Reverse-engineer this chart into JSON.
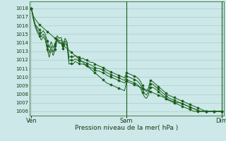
{
  "xlabel": "Pression niveau de la mer( hPa )",
  "xtick_labels": [
    "Ven",
    "Sam",
    "Dim"
  ],
  "xtick_positions": [
    0,
    48,
    96
  ],
  "ylim": [
    1005.5,
    1018.8
  ],
  "yticks": [
    1006,
    1007,
    1008,
    1009,
    1010,
    1011,
    1012,
    1013,
    1014,
    1015,
    1016,
    1017,
    1018
  ],
  "xlim": [
    -1,
    97
  ],
  "bg_color": "#cce8e8",
  "grid_color": "#aacccc",
  "line_color": "#1a5e1a",
  "vline_color": "#1a5e1a",
  "series": [
    [
      1018.0,
      1017.1,
      1016.7,
      1016.4,
      1016.1,
      1015.9,
      1015.7,
      1015.5,
      1015.3,
      1015.1,
      1014.9,
      1014.7,
      1014.5,
      1014.3,
      1014.1,
      1013.9,
      1013.7,
      1013.5,
      1013.3,
      1013.1,
      1012.9,
      1012.7,
      1012.5,
      1012.3,
      1012.1,
      1011.9,
      1011.7,
      1011.5,
      1011.3,
      1011.1,
      1010.9,
      1010.7,
      1010.5,
      1010.3,
      1010.1,
      1009.9,
      1009.7,
      1009.5,
      1009.3,
      1009.2,
      1009.1,
      1009.0,
      1008.9,
      1008.8,
      1008.7,
      1008.6,
      1008.5,
      1008.4,
      1009.5,
      1009.4,
      1009.3,
      1009.2,
      1009.1,
      1009.0,
      1008.9,
      1008.8,
      1008.7,
      1008.6,
      1008.5,
      1008.4,
      1008.3,
      1008.2,
      1008.1,
      1008.0,
      1007.9,
      1007.8,
      1007.7,
      1007.6,
      1007.5,
      1007.4,
      1007.3,
      1007.2,
      1007.1,
      1007.0,
      1007.0,
      1007.0,
      1006.9,
      1006.8,
      1006.7,
      1006.6,
      1006.5,
      1006.4,
      1006.3,
      1006.2,
      1006.1,
      1006.0,
      1006.0,
      1006.0,
      1006.0,
      1006.0,
      1006.0,
      1006.0,
      1006.0,
      1006.0,
      1006.0,
      1006.0,
      1006.0
    ],
    [
      1018.0,
      1016.9,
      1016.1,
      1015.8,
      1015.5,
      1015.1,
      1015.4,
      1015.0,
      1014.2,
      1013.4,
      1014.1,
      1013.4,
      1013.9,
      1014.8,
      1014.5,
      1014.6,
      1013.9,
      1014.5,
      1014.1,
      1012.3,
      1012.4,
      1012.3,
      1012.5,
      1012.4,
      1012.3,
      1012.1,
      1012.2,
      1012.0,
      1012.0,
      1011.8,
      1011.7,
      1011.7,
      1011.5,
      1011.4,
      1011.3,
      1011.2,
      1011.1,
      1011.0,
      1010.8,
      1010.7,
      1010.6,
      1010.5,
      1010.4,
      1010.3,
      1010.2,
      1010.1,
      1010.0,
      1009.9,
      1010.5,
      1010.4,
      1010.3,
      1010.2,
      1010.1,
      1010.0,
      1009.8,
      1009.5,
      1009.0,
      1008.5,
      1008.3,
      1008.7,
      1009.6,
      1009.5,
      1009.3,
      1009.1,
      1008.9,
      1008.7,
      1008.5,
      1008.3,
      1008.1,
      1007.9,
      1007.8,
      1007.7,
      1007.6,
      1007.5,
      1007.4,
      1007.3,
      1007.2,
      1007.1,
      1007.0,
      1006.9,
      1006.8,
      1006.7,
      1006.6,
      1006.5,
      1006.4,
      1006.3,
      1006.2,
      1006.1,
      1006.0,
      1006.0,
      1006.0,
      1006.0,
      1006.0,
      1006.0,
      1006.0,
      1006.0,
      1006.0
    ],
    [
      1018.0,
      1016.8,
      1016.0,
      1015.5,
      1015.1,
      1014.7,
      1015.0,
      1014.6,
      1013.6,
      1012.8,
      1013.6,
      1012.9,
      1013.6,
      1014.5,
      1014.2,
      1014.3,
      1013.6,
      1014.2,
      1013.8,
      1011.9,
      1012.0,
      1011.9,
      1012.1,
      1012.0,
      1011.9,
      1011.8,
      1011.8,
      1011.7,
      1011.6,
      1011.5,
      1011.4,
      1011.3,
      1011.1,
      1011.0,
      1011.0,
      1010.9,
      1010.8,
      1010.7,
      1010.5,
      1010.4,
      1010.3,
      1010.2,
      1010.1,
      1010.0,
      1009.9,
      1009.8,
      1009.7,
      1009.6,
      1010.1,
      1010.0,
      1009.9,
      1009.8,
      1009.7,
      1009.6,
      1009.4,
      1009.1,
      1008.6,
      1008.1,
      1007.9,
      1008.3,
      1009.2,
      1009.2,
      1009.0,
      1008.8,
      1008.6,
      1008.4,
      1008.2,
      1008.0,
      1007.8,
      1007.6,
      1007.5,
      1007.4,
      1007.3,
      1007.2,
      1007.1,
      1007.0,
      1006.9,
      1006.8,
      1006.7,
      1006.6,
      1006.5,
      1006.4,
      1006.3,
      1006.2,
      1006.1,
      1006.0,
      1006.0,
      1006.0,
      1006.0,
      1006.0,
      1006.0,
      1006.0,
      1006.0,
      1006.0,
      1006.0,
      1006.0,
      1006.0
    ],
    [
      1018.0,
      1016.7,
      1015.8,
      1015.2,
      1014.8,
      1014.3,
      1014.7,
      1014.3,
      1013.2,
      1012.3,
      1013.2,
      1012.5,
      1013.2,
      1014.3,
      1013.9,
      1014.0,
      1013.3,
      1013.9,
      1013.6,
      1011.5,
      1011.6,
      1011.5,
      1011.8,
      1011.7,
      1011.6,
      1011.5,
      1011.5,
      1011.4,
      1011.3,
      1011.2,
      1011.1,
      1011.0,
      1010.8,
      1010.7,
      1010.7,
      1010.6,
      1010.5,
      1010.4,
      1010.2,
      1010.1,
      1010.0,
      1009.9,
      1009.8,
      1009.7,
      1009.6,
      1009.5,
      1009.4,
      1009.3,
      1009.7,
      1009.6,
      1009.5,
      1009.4,
      1009.3,
      1009.2,
      1009.0,
      1008.7,
      1008.2,
      1007.7,
      1007.5,
      1007.9,
      1008.8,
      1008.8,
      1008.7,
      1008.5,
      1008.3,
      1008.1,
      1007.9,
      1007.7,
      1007.5,
      1007.3,
      1007.2,
      1007.1,
      1007.0,
      1006.9,
      1006.8,
      1006.7,
      1006.6,
      1006.5,
      1006.4,
      1006.3,
      1006.2,
      1006.1,
      1006.0,
      1006.0,
      1006.0,
      1006.0,
      1006.0,
      1006.0,
      1006.0,
      1006.0,
      1006.0,
      1006.0,
      1006.0,
      1006.0,
      1006.0,
      1006.0,
      1006.0
    ]
  ]
}
